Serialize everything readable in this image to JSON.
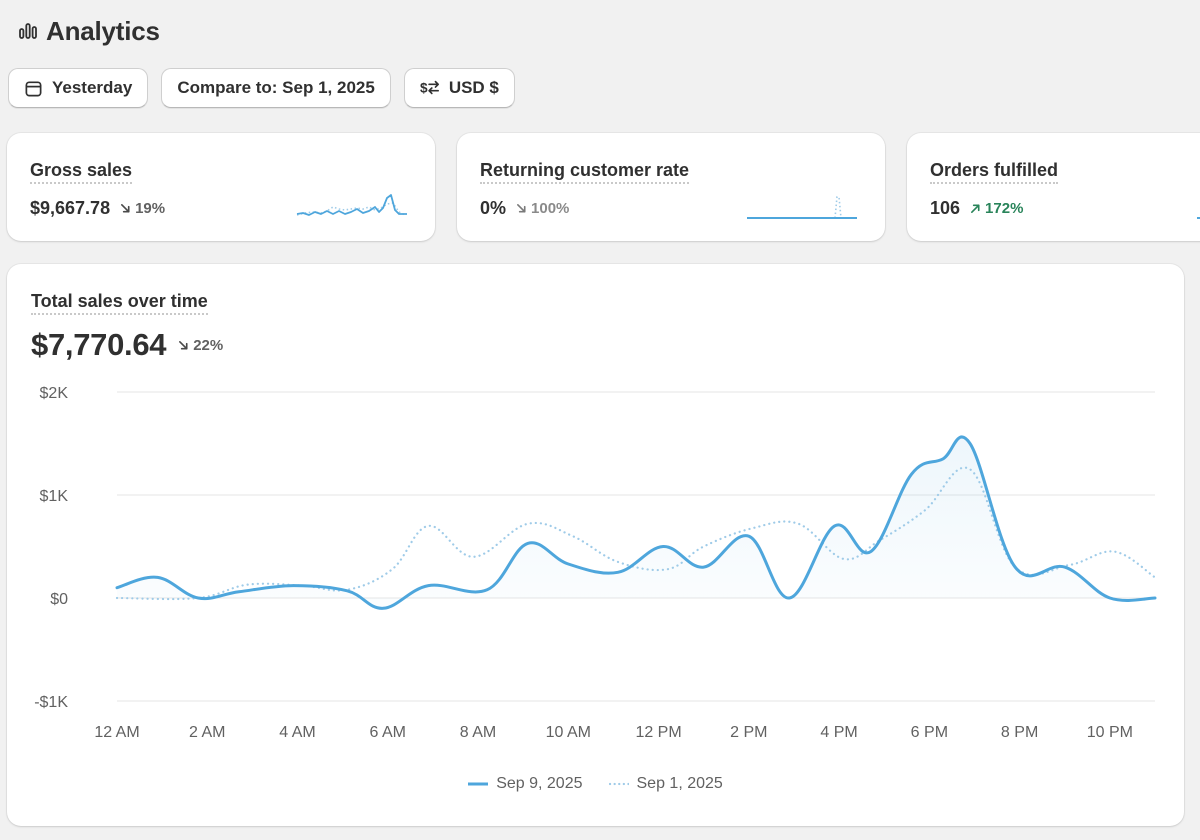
{
  "header": {
    "title": "Analytics",
    "icon": "bar-chart-icon"
  },
  "filters": {
    "date_label": "Yesterday",
    "compare_label": "Compare to: Sep 1, 2025",
    "currency_label": "USD $"
  },
  "metrics": [
    {
      "title": "Gross sales",
      "value": "$9,667.78",
      "delta": "19%",
      "direction": "down"
    },
    {
      "title": "Returning customer rate",
      "value": "0%",
      "delta": "100%",
      "direction": "down"
    },
    {
      "title": "Orders fulfilled",
      "value": "106",
      "delta": "172%",
      "direction": "up"
    }
  ],
  "colors": {
    "series_primary": "#4ea6dc",
    "series_compare": "#9fcbe8",
    "delta_up": "#29845a",
    "delta_down": "#616161",
    "gridline": "#e6e6e6"
  },
  "chart_data": {
    "type": "line",
    "title": "Total sales over time",
    "total": "$7,770.64",
    "total_delta": "22%",
    "total_direction": "down",
    "xlabel": "",
    "ylabel": "",
    "ylim": [
      -1000,
      2000
    ],
    "y_ticks": [
      {
        "value": 2000,
        "label": "$2K"
      },
      {
        "value": 1000,
        "label": "$1K"
      },
      {
        "value": 0,
        "label": "$0"
      },
      {
        "value": -1000,
        "label": "-$1K"
      }
    ],
    "x_ticks": [
      {
        "hour": 0,
        "label": "12 AM"
      },
      {
        "hour": 2,
        "label": "2 AM"
      },
      {
        "hour": 4,
        "label": "4 AM"
      },
      {
        "hour": 6,
        "label": "6 AM"
      },
      {
        "hour": 8,
        "label": "8 AM"
      },
      {
        "hour": 10,
        "label": "10 AM"
      },
      {
        "hour": 12,
        "label": "12 PM"
      },
      {
        "hour": 14,
        "label": "2 PM"
      },
      {
        "hour": 16,
        "label": "4 PM"
      },
      {
        "hour": 18,
        "label": "6 PM"
      },
      {
        "hour": 20,
        "label": "8 PM"
      },
      {
        "hour": 22,
        "label": "10 PM"
      }
    ],
    "xlim": [
      0,
      23
    ],
    "series": [
      {
        "name": "Sep 9, 2025",
        "style": "solid",
        "points": [
          [
            0,
            100
          ],
          [
            0.9,
            200
          ],
          [
            1.8,
            0
          ],
          [
            2.7,
            60
          ],
          [
            3.9,
            120
          ],
          [
            5.1,
            70
          ],
          [
            5.9,
            -100
          ],
          [
            6.9,
            120
          ],
          [
            8.2,
            80
          ],
          [
            9.1,
            530
          ],
          [
            10,
            330
          ],
          [
            11.1,
            250
          ],
          [
            12.1,
            500
          ],
          [
            13,
            300
          ],
          [
            14,
            600
          ],
          [
            14.9,
            0
          ],
          [
            15.9,
            700
          ],
          [
            16.7,
            450
          ],
          [
            17.6,
            1200
          ],
          [
            18.3,
            1350
          ],
          [
            18.9,
            1500
          ],
          [
            19.9,
            300
          ],
          [
            21,
            300
          ],
          [
            22,
            0
          ],
          [
            23,
            0
          ]
        ]
      },
      {
        "name": "Sep 1, 2025",
        "style": "dotted",
        "points": [
          [
            0,
            0
          ],
          [
            1.8,
            0
          ],
          [
            2.9,
            130
          ],
          [
            4.1,
            120
          ],
          [
            5.1,
            80
          ],
          [
            6.1,
            280
          ],
          [
            6.9,
            700
          ],
          [
            7.9,
            400
          ],
          [
            9.1,
            720
          ],
          [
            10.1,
            600
          ],
          [
            11.1,
            350
          ],
          [
            12.2,
            280
          ],
          [
            13,
            500
          ],
          [
            14.1,
            680
          ],
          [
            15.1,
            720
          ],
          [
            16.1,
            380
          ],
          [
            16.9,
            560
          ],
          [
            17.9,
            850
          ],
          [
            18.9,
            1250
          ],
          [
            19.9,
            300
          ],
          [
            21.1,
            320
          ],
          [
            22.1,
            450
          ],
          [
            23,
            200
          ]
        ]
      }
    ]
  }
}
